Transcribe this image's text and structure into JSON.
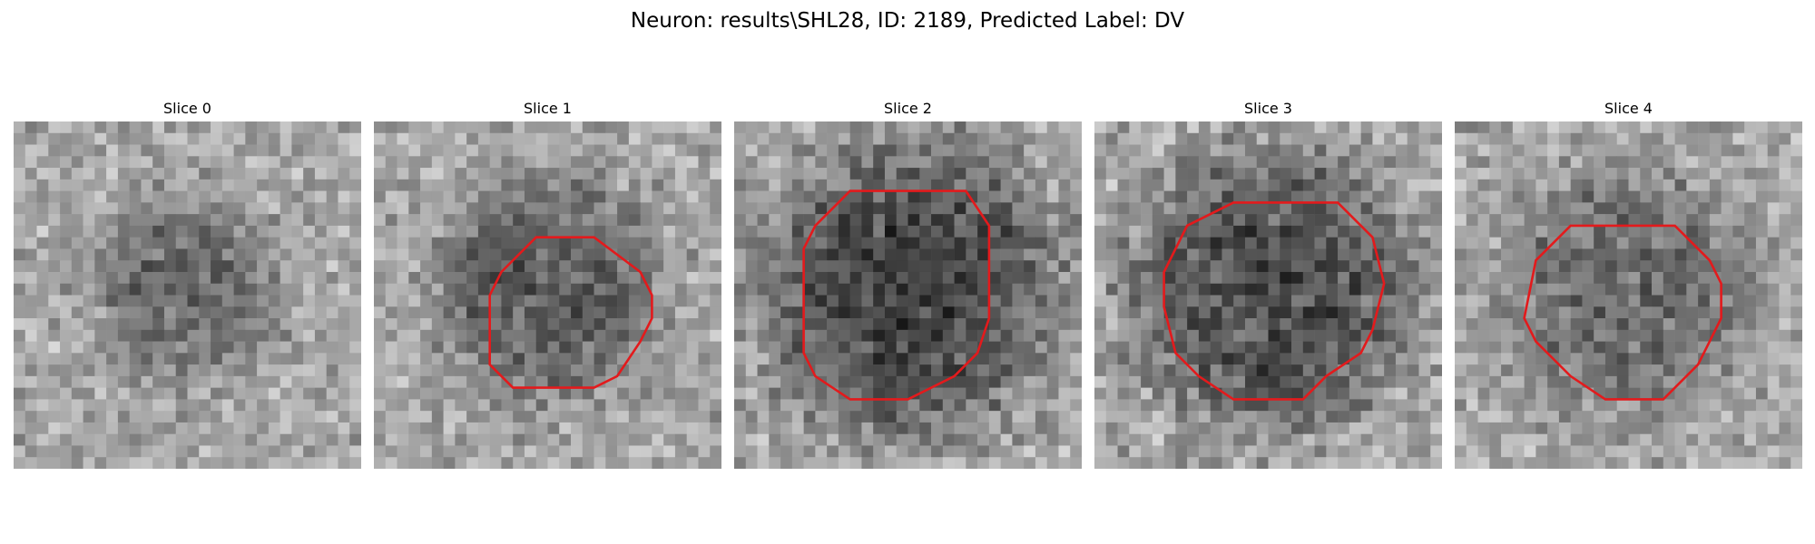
{
  "figure": {
    "title": "Neuron: results\\SHL28, ID: 2189, Predicted Label: DV"
  },
  "panels": [
    {
      "title": "Slice 0",
      "has_contour": false,
      "seed": 11,
      "blob_strength": 0.55,
      "blob_radius": 0.26,
      "noise": 0.55
    },
    {
      "title": "Slice 1",
      "has_contour": true,
      "seed": 23,
      "blob_strength": 0.62,
      "blob_radius": 0.32,
      "noise": 0.55
    },
    {
      "title": "Slice 2",
      "has_contour": true,
      "seed": 37,
      "blob_strength": 0.85,
      "blob_radius": 0.42,
      "noise": 0.6
    },
    {
      "title": "Slice 3",
      "has_contour": true,
      "seed": 41,
      "blob_strength": 0.75,
      "blob_radius": 0.4,
      "noise": 0.6
    },
    {
      "title": "Slice 4",
      "has_contour": true,
      "seed": 53,
      "blob_strength": 0.5,
      "blob_radius": 0.36,
      "noise": 0.55
    }
  ],
  "colors": {
    "contour": "#e31a1c"
  }
}
